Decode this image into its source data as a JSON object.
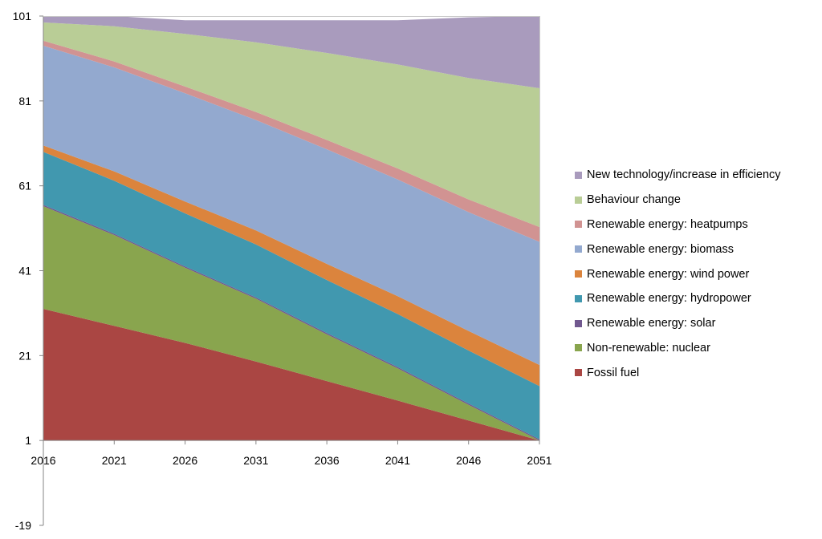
{
  "chart_data": {
    "type": "area",
    "stacked": true,
    "title": "",
    "xlabel": "",
    "ylabel": "",
    "x": [
      2016,
      2021,
      2026,
      2031,
      2036,
      2041,
      2046,
      2051
    ],
    "y_ticks": [
      -19,
      1,
      21,
      41,
      61,
      81,
      101
    ],
    "ylim": [
      -19,
      101
    ],
    "legend_position": "right",
    "grid": false,
    "series": [
      {
        "name": "Fossil fuel",
        "color": "#AA4643",
        "values": [
          31,
          27,
          23,
          18.6,
          14,
          9.4,
          4.7,
          0
        ]
      },
      {
        "name": "Non-renewable: nuclear",
        "color": "#89A54E",
        "values": [
          24.2,
          21.4,
          17.7,
          14.8,
          11,
          7.6,
          3.7,
          0
        ]
      },
      {
        "name": "Renewable energy: solar",
        "color": "#71588F",
        "values": [
          0.3,
          0.3,
          0.3,
          0.3,
          0.3,
          0.3,
          0.3,
          0.3
        ]
      },
      {
        "name": "Renewable energy: hydropower",
        "color": "#4198AF",
        "values": [
          12.5,
          12.5,
          12.5,
          12.5,
          12.5,
          12.5,
          12.5,
          12.5
        ]
      },
      {
        "name": "Renewable energy: wind power",
        "color": "#DB843D",
        "values": [
          1.5,
          2.2,
          2.8,
          3.3,
          3.8,
          4.2,
          4.6,
          5
        ]
      },
      {
        "name": "Renewable energy: biomass",
        "color": "#93A9CF",
        "values": [
          23.5,
          24.5,
          25.5,
          26,
          27,
          27.5,
          28,
          29
        ]
      },
      {
        "name": "Renewable energy: heatpumps",
        "color": "#D19392",
        "values": [
          1.2,
          1.4,
          1.6,
          1.9,
          2.2,
          2.6,
          3,
          3.5
        ]
      },
      {
        "name": "Behaviour change",
        "color": "#B9CD96",
        "values": [
          4.3,
          8.3,
          12.4,
          16.4,
          20.5,
          24.5,
          28.6,
          32.7
        ]
      },
      {
        "name": "New technology/increase in efficiency",
        "color": "#A99BBD",
        "values": [
          1.5,
          2.4,
          3.2,
          5.2,
          7.7,
          10.4,
          14.3,
          17
        ]
      }
    ]
  }
}
